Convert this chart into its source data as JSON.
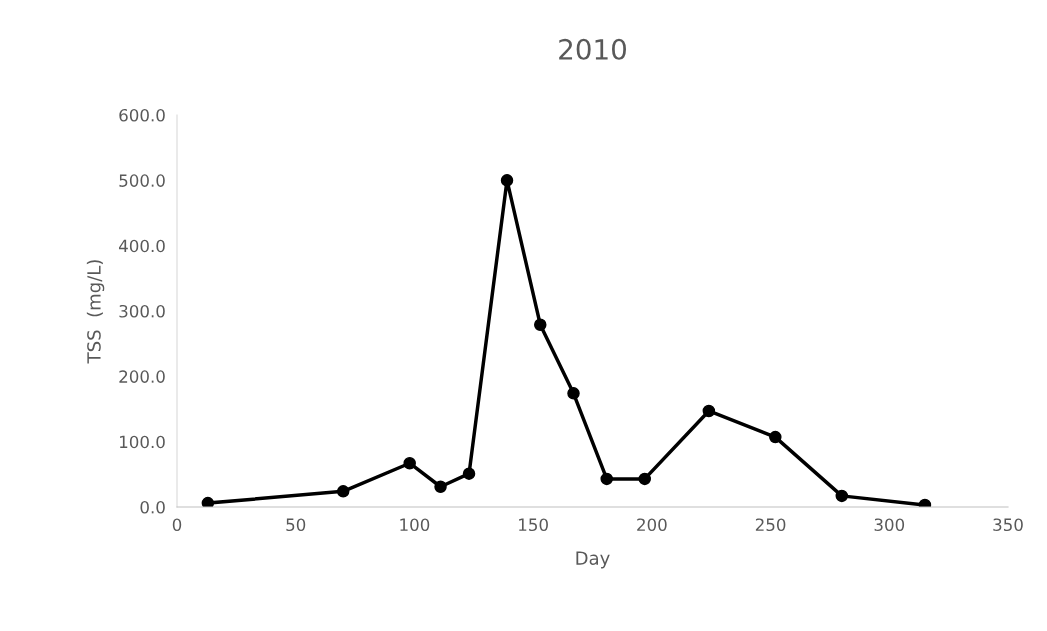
{
  "chart_data": {
    "type": "line",
    "title": "2010",
    "xlabel": "Day",
    "ylabel": "TSS  (mg/L)",
    "x": [
      13,
      70,
      98,
      111,
      123,
      139,
      153,
      167,
      181,
      197,
      224,
      252,
      280,
      315
    ],
    "series": [
      {
        "color": "#000000",
        "values": [
          6,
          24,
          67,
          31,
          51,
          500,
          279,
          174,
          43,
          43,
          147,
          107,
          17,
          3
        ]
      }
    ],
    "xlim": [
      0,
      350
    ],
    "xticks": [
      0,
      50,
      100,
      150,
      200,
      250,
      300,
      350
    ],
    "ylim": [
      0,
      600
    ],
    "yticks": [
      {
        "value": 0,
        "label": "0.0"
      },
      {
        "value": 100,
        "label": "100.0"
      },
      {
        "value": 200,
        "label": "200.0"
      },
      {
        "value": 300,
        "label": "300.0"
      },
      {
        "value": 400,
        "label": "400.0"
      },
      {
        "value": 500,
        "label": "500.0"
      },
      {
        "value": 600,
        "label": "600.0"
      }
    ],
    "grid": false,
    "legend": false,
    "marker": "circle",
    "line_style": "solid"
  }
}
